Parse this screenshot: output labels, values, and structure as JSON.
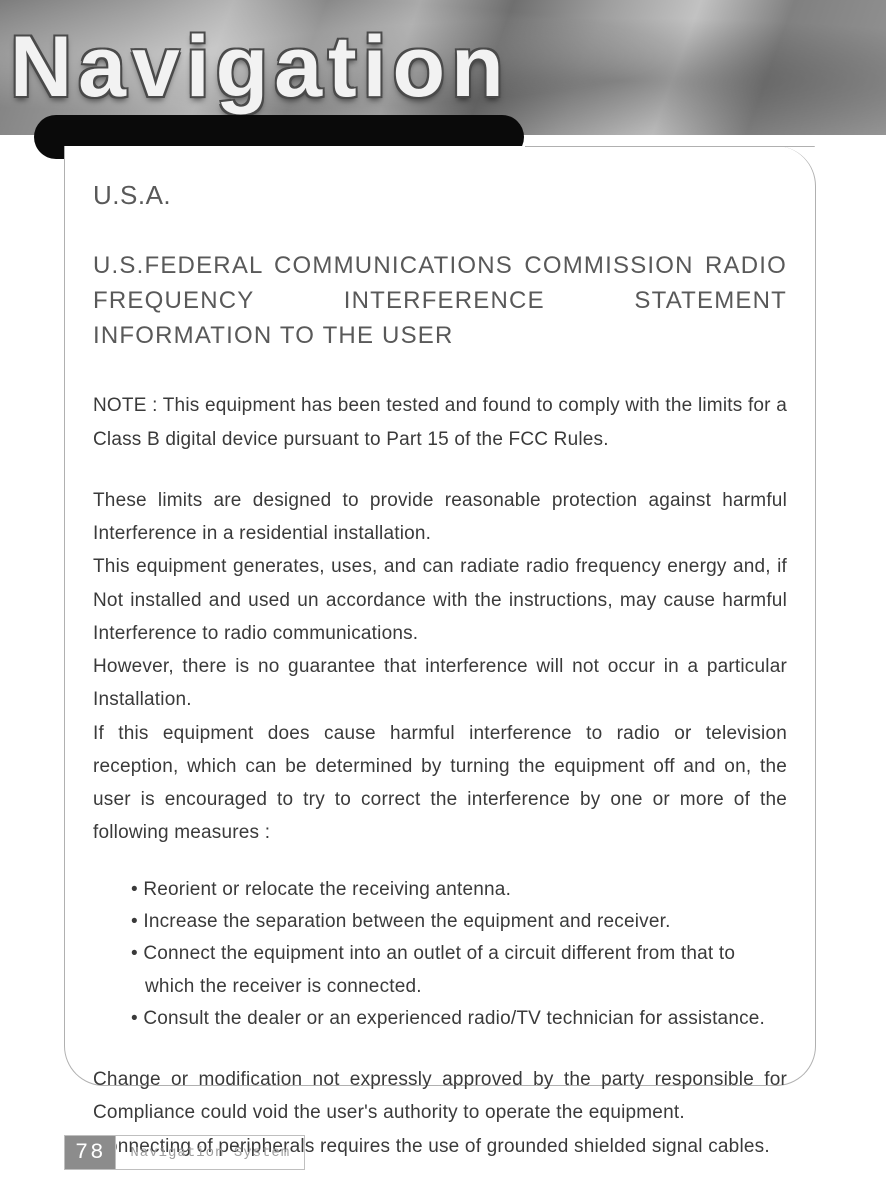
{
  "header": {
    "banner_title": "Navigation",
    "gradient_colors": [
      "#7d7d7d",
      "#9a9a9a",
      "#b5b5b5",
      "#888888",
      "#aaaaaa",
      "#6f6f6f",
      "#9e9e9e",
      "#c2c2c2",
      "#808080",
      "#949494"
    ],
    "title_color": "#f2f2f2",
    "title_outline": "#4a4a4a",
    "title_fontsize": 86,
    "pill_color": "#0a0a0a"
  },
  "panel": {
    "border_color": "#b0b0b0",
    "background": "#ffffff",
    "border_radius": 40
  },
  "content": {
    "h1": "U.S.A.",
    "h2": "U.S.FEDERAL COMMUNICATIONS COMMISSION RADIO FREQUENCY INTERFERENCE STATEMENT INFORMATION TO THE USER",
    "heading_color": "#595959",
    "heading_fontsize": 24,
    "body_color": "#3a3a3a",
    "body_fontsize": 19,
    "para_note": "NOTE : This equipment has been tested and found to comply with the limits for a Class B digital device pursuant to Part 15 of the FCC Rules.",
    "para_limits": "These limits are designed to provide reasonable protection against harmful Interference in a residential installation.",
    "para_generates": "This equipment generates, uses, and can radiate radio frequency energy and, if Not installed and used un accordance with the instructions, may cause harmful Interference to radio communications.",
    "para_however": "However, there is no guarantee that interference will not occur in a particular Installation.",
    "para_ifcause": "If this equipment does cause harmful interference to radio or television reception, which can be determined by turning the equipment off and on, the user is encouraged to try to correct the interference by one or more of the following measures :",
    "bullets": [
      "Reorient or relocate the receiving antenna.",
      "Increase the separation between the equipment and receiver.",
      "Connect the equipment into an outlet of a circuit different from that to which the receiver is connected.",
      "Consult the dealer or an experienced radio/TV technician for assistance."
    ],
    "para_change": "Change or modification not expressly approved by the party responsible for Compliance could void the user's authority to operate the equipment.",
    "para_connecting": "Connecting of peripherals requires the use of grounded shielded signal cables."
  },
  "footer": {
    "page_number": "78",
    "label": "Navigation System",
    "num_bg": "#8c8c8c",
    "num_color": "#ffffff",
    "label_color": "#9d9d9d",
    "border_color": "#bfbfbf"
  }
}
